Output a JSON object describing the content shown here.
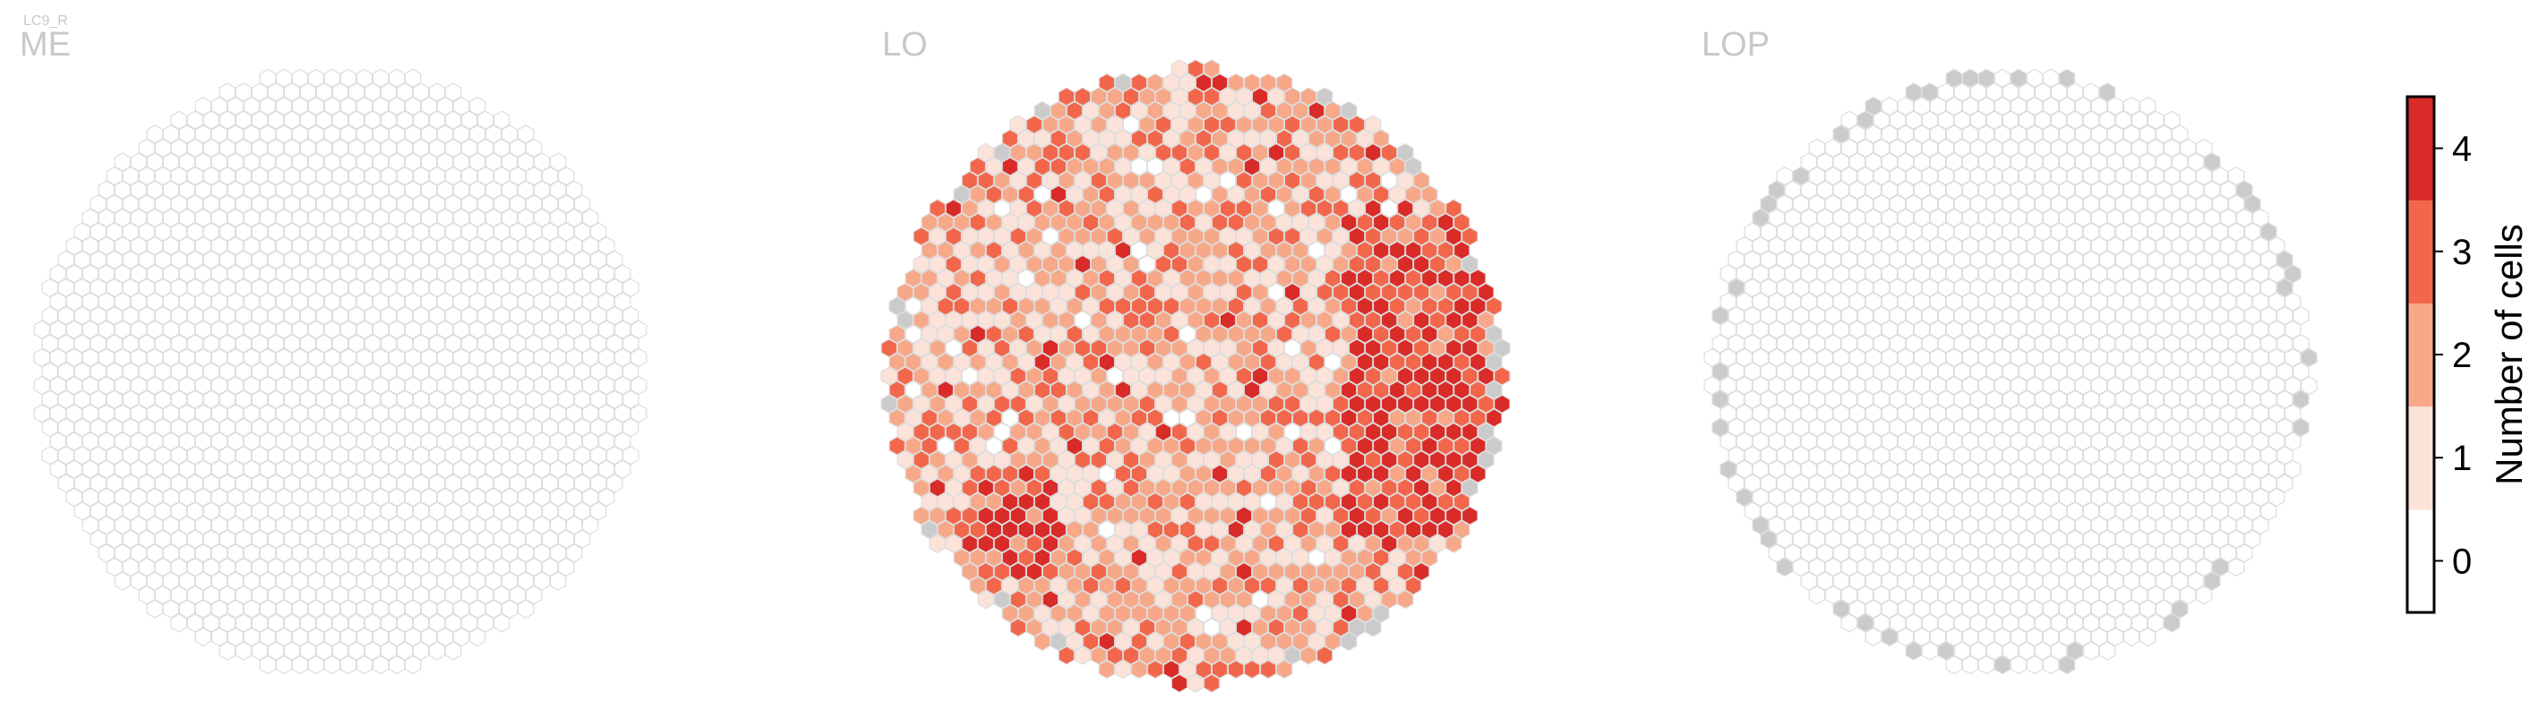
{
  "figure": {
    "cell_type": "LC9_R"
  },
  "chart_data": [
    {
      "type": "heatmap",
      "title": "ME",
      "shape": "hexagonal columns",
      "note_values": "every column has 0 cells; no column is outside the neuropil",
      "max_cells_per_column": 0
    },
    {
      "type": "heatmap",
      "title": "LO",
      "shape": "hexagonal columns",
      "max_cells_per_column": 4,
      "value_distribution": {
        "0": 0.06,
        "1": 0.28,
        "2": 0.33,
        "3": 0.23,
        "4": 0.1
      },
      "hotspots": [
        {
          "region": "right edge (anterior)",
          "value": 4
        },
        {
          "region": "lower-left",
          "value": 4
        }
      ],
      "note_gray": "some perimeter columns are drawn gray (no value)"
    },
    {
      "type": "heatmap",
      "title": "LOP",
      "shape": "hexagonal columns",
      "note_values": "every interior column has 0 cells; many perimeter columns are gray (no value)",
      "max_cells_per_column": 0
    }
  ],
  "colorbar": {
    "label": "Number of cells",
    "ticks": [
      "0",
      "1",
      "2",
      "3",
      "4"
    ],
    "colors": [
      "#ffffff",
      "#fbe3d9",
      "#f7a889",
      "#f2674b",
      "#d92b27"
    ],
    "na_color": "#cbcbcb",
    "stroke_color": "#dddddd"
  }
}
